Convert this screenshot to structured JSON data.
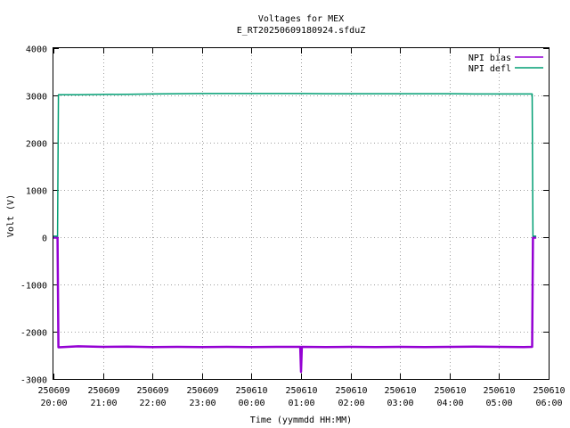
{
  "chart_data": {
    "type": "line",
    "title": "Voltages for MEX",
    "subtitle": "E_RT20250609180924.sfduZ",
    "xlabel": "Time (yymmdd HH:MM)",
    "ylabel": "Volt (V)",
    "ylim": [
      -3000,
      4000
    ],
    "xlim_hours": [
      20,
      30
    ],
    "yticks": [
      "-3000",
      "-2000",
      "-1000",
      "0",
      "1000",
      "2000",
      "3000",
      "4000"
    ],
    "xticks": [
      {
        "date": "250609",
        "time": "20:00"
      },
      {
        "date": "250609",
        "time": "21:00"
      },
      {
        "date": "250609",
        "time": "22:00"
      },
      {
        "date": "250609",
        "time": "23:00"
      },
      {
        "date": "250610",
        "time": "00:00"
      },
      {
        "date": "250610",
        "time": "01:00"
      },
      {
        "date": "250610",
        "time": "02:00"
      },
      {
        "date": "250610",
        "time": "03:00"
      },
      {
        "date": "250610",
        "time": "04:00"
      },
      {
        "date": "250610",
        "time": "05:00"
      },
      {
        "date": "250610",
        "time": "06:00"
      }
    ],
    "grid": true,
    "legend_position": "top-right",
    "series": [
      {
        "name": "NPI bias",
        "color": "#9400d3",
        "points": [
          [
            "20:00",
            -10
          ],
          [
            "20:05",
            -10
          ],
          [
            "20:06",
            -2330
          ],
          [
            "20:30",
            -2310
          ],
          [
            "21:00",
            -2320
          ],
          [
            "21:30",
            -2315
          ],
          [
            "22:00",
            -2325
          ],
          [
            "22:30",
            -2320
          ],
          [
            "23:00",
            -2325
          ],
          [
            "23:30",
            -2320
          ],
          [
            "00:00",
            -2325
          ],
          [
            "00:30",
            -2320
          ],
          [
            "00:59",
            -2320
          ],
          [
            "01:00",
            -2850
          ],
          [
            "01:01",
            -2320
          ],
          [
            "01:30",
            -2325
          ],
          [
            "02:00",
            -2320
          ],
          [
            "02:30",
            -2325
          ],
          [
            "03:00",
            -2320
          ],
          [
            "03:30",
            -2325
          ],
          [
            "04:00",
            -2320
          ],
          [
            "04:30",
            -2315
          ],
          [
            "05:00",
            -2320
          ],
          [
            "05:30",
            -2325
          ],
          [
            "05:40",
            -2320
          ],
          [
            "05:41",
            -10
          ],
          [
            "05:45",
            -10
          ]
        ]
      },
      {
        "name": "NPI defl",
        "color": "#009e73",
        "points": [
          [
            "20:00",
            20
          ],
          [
            "20:05",
            20
          ],
          [
            "20:06",
            3015
          ],
          [
            "20:30",
            3015
          ],
          [
            "21:00",
            3020
          ],
          [
            "21:30",
            3025
          ],
          [
            "22:00",
            3030
          ],
          [
            "22:30",
            3035
          ],
          [
            "23:00",
            3040
          ],
          [
            "23:30",
            3040
          ],
          [
            "00:00",
            3040
          ],
          [
            "00:30",
            3040
          ],
          [
            "01:00",
            3040
          ],
          [
            "01:30",
            3035
          ],
          [
            "02:00",
            3035
          ],
          [
            "02:30",
            3035
          ],
          [
            "03:00",
            3035
          ],
          [
            "03:30",
            3035
          ],
          [
            "04:00",
            3035
          ],
          [
            "04:30",
            3030
          ],
          [
            "05:00",
            3030
          ],
          [
            "05:30",
            3030
          ],
          [
            "05:40",
            3030
          ],
          [
            "05:41",
            20
          ],
          [
            "05:45",
            20
          ]
        ]
      }
    ]
  }
}
